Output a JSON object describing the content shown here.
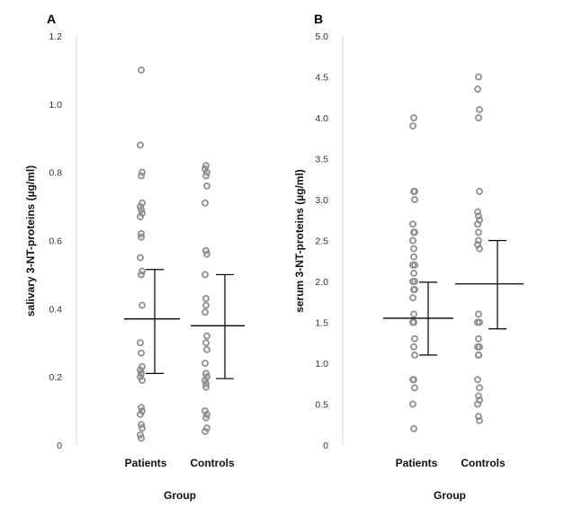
{
  "chart_data": [
    {
      "type": "scatter",
      "panel_label": "A",
      "title": "",
      "xlabel": "Group",
      "ylabel": "salivary 3-NT-proteins   (µg/ml)",
      "categories": [
        "Patients",
        "Controls"
      ],
      "ylim": [
        0,
        1.2
      ],
      "yticks": [
        0,
        0.2,
        0.4,
        0.6,
        0.8,
        1.0,
        1.2
      ],
      "ytick_labels": [
        "0",
        "0.2",
        "0.4",
        "0.6",
        "0.8",
        "1.0",
        "1.2"
      ],
      "series": [
        {
          "name": "Patients",
          "values": [
            1.1,
            0.88,
            0.8,
            0.79,
            0.71,
            0.7,
            0.69,
            0.68,
            0.67,
            0.62,
            0.61,
            0.55,
            0.51,
            0.5,
            0.41,
            0.3,
            0.27,
            0.23,
            0.22,
            0.21,
            0.21,
            0.2,
            0.19,
            0.11,
            0.1,
            0.09,
            0.06,
            0.05,
            0.03,
            0.02
          ],
          "mean": 0.37,
          "err_low": 0.21,
          "err_high": 0.515
        },
        {
          "name": "Controls",
          "values": [
            0.82,
            0.81,
            0.8,
            0.79,
            0.76,
            0.71,
            0.57,
            0.56,
            0.5,
            0.43,
            0.41,
            0.39,
            0.32,
            0.3,
            0.28,
            0.24,
            0.21,
            0.2,
            0.19,
            0.18,
            0.17,
            0.1,
            0.09,
            0.08,
            0.05,
            0.04
          ],
          "mean": 0.35,
          "err_low": 0.195,
          "err_high": 0.5
        }
      ]
    },
    {
      "type": "scatter",
      "panel_label": "B",
      "title": "",
      "xlabel": "Group",
      "ylabel": "serum 3-NT-proteins   (µg/ml)",
      "categories": [
        "Patients",
        "Controls"
      ],
      "ylim": [
        0,
        5.0
      ],
      "yticks": [
        0,
        0.5,
        1.0,
        1.5,
        2.0,
        2.5,
        3.0,
        3.5,
        4.0,
        4.5,
        5.0
      ],
      "ytick_labels": [
        "0",
        "0.5",
        "1.0",
        "1.5",
        "2.0",
        "2.5",
        "3.0",
        "3.5",
        "4.0",
        "4.5",
        "5.0"
      ],
      "series": [
        {
          "name": "Patients",
          "values": [
            4.0,
            3.9,
            3.1,
            3.1,
            3.0,
            2.7,
            2.6,
            2.6,
            2.5,
            2.4,
            2.3,
            2.2,
            2.2,
            2.1,
            2.0,
            2.0,
            1.9,
            1.9,
            1.8,
            1.6,
            1.5,
            1.5,
            1.3,
            1.2,
            1.1,
            0.8,
            0.8,
            0.7,
            0.5,
            0.2
          ],
          "mean": 1.55,
          "err_low": 1.1,
          "err_high": 1.99
        },
        {
          "name": "Controls",
          "values": [
            4.5,
            4.35,
            4.1,
            4.0,
            3.1,
            2.85,
            2.8,
            2.75,
            2.7,
            2.6,
            2.5,
            2.45,
            2.4,
            1.6,
            1.5,
            1.5,
            1.3,
            1.2,
            1.2,
            1.1,
            1.1,
            0.8,
            0.7,
            0.6,
            0.55,
            0.5,
            0.35,
            0.3
          ],
          "mean": 1.97,
          "err_low": 1.42,
          "err_high": 2.5
        }
      ]
    }
  ]
}
